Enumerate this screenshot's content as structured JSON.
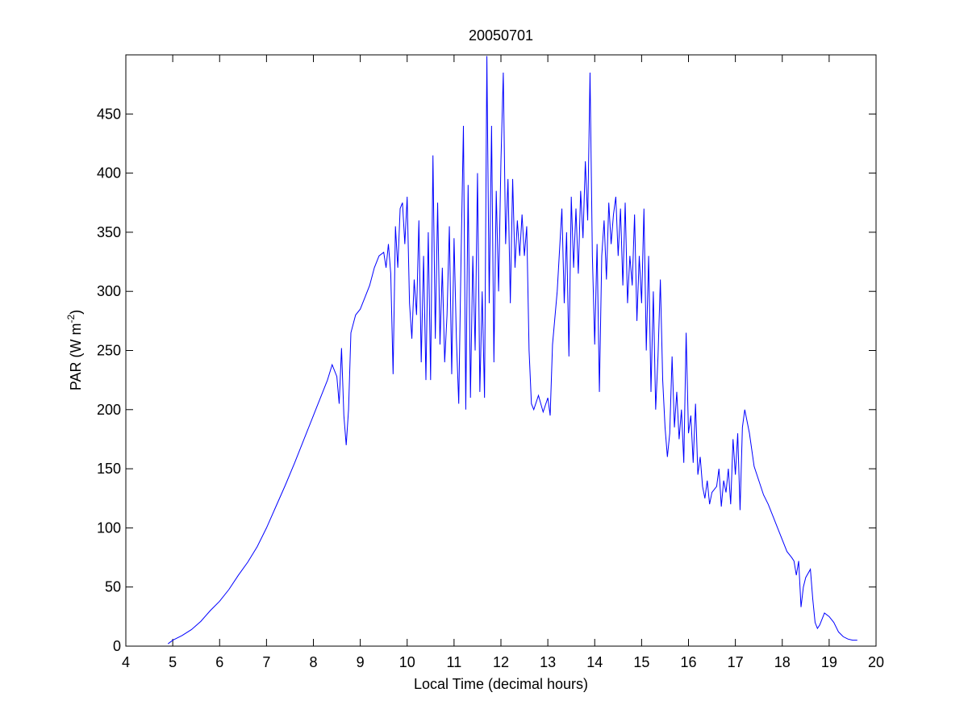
{
  "chart_data": {
    "type": "line",
    "title": "20050701",
    "xlabel": "Local Time (decimal hours)",
    "ylabel": {
      "text": "PAR (W m",
      "superscript": "-2",
      "suffix": ")"
    },
    "color": "#0000ff",
    "xlim": [
      4,
      20
    ],
    "xticks": [
      4,
      5,
      6,
      7,
      8,
      9,
      10,
      11,
      12,
      13,
      14,
      15,
      16,
      17,
      18,
      19,
      20
    ],
    "ylim": [
      0,
      500
    ],
    "yticks": [
      0,
      50,
      100,
      150,
      200,
      250,
      300,
      350,
      400,
      450
    ],
    "x": [
      4.9,
      5.0,
      5.2,
      5.4,
      5.6,
      5.8,
      6.0,
      6.2,
      6.4,
      6.6,
      6.8,
      7.0,
      7.2,
      7.4,
      7.6,
      7.8,
      8.0,
      8.2,
      8.3,
      8.4,
      8.5,
      8.55,
      8.6,
      8.65,
      8.7,
      8.75,
      8.8,
      8.9,
      9.0,
      9.1,
      9.2,
      9.3,
      9.4,
      9.5,
      9.55,
      9.6,
      9.65,
      9.7,
      9.75,
      9.8,
      9.85,
      9.9,
      9.95,
      10.0,
      10.05,
      10.1,
      10.15,
      10.2,
      10.25,
      10.3,
      10.35,
      10.4,
      10.45,
      10.5,
      10.55,
      10.6,
      10.65,
      10.7,
      10.75,
      10.8,
      10.85,
      10.9,
      10.95,
      11.0,
      11.05,
      11.1,
      11.15,
      11.2,
      11.25,
      11.3,
      11.35,
      11.4,
      11.45,
      11.5,
      11.55,
      11.6,
      11.65,
      11.7,
      11.75,
      11.8,
      11.85,
      11.9,
      11.95,
      12.0,
      12.05,
      12.1,
      12.15,
      12.2,
      12.25,
      12.3,
      12.35,
      12.4,
      12.45,
      12.5,
      12.55,
      12.6,
      12.65,
      12.7,
      12.8,
      12.9,
      13.0,
      13.05,
      13.1,
      13.2,
      13.3,
      13.35,
      13.4,
      13.45,
      13.5,
      13.55,
      13.6,
      13.65,
      13.7,
      13.75,
      13.8,
      13.85,
      13.9,
      13.95,
      14.0,
      14.05,
      14.1,
      14.15,
      14.2,
      14.25,
      14.3,
      14.35,
      14.4,
      14.45,
      14.5,
      14.55,
      14.6,
      14.65,
      14.7,
      14.75,
      14.8,
      14.85,
      14.9,
      14.95,
      15.0,
      15.05,
      15.1,
      15.15,
      15.2,
      15.25,
      15.3,
      15.35,
      15.4,
      15.45,
      15.5,
      15.55,
      15.6,
      15.65,
      15.7,
      15.75,
      15.8,
      15.85,
      15.9,
      15.95,
      16.0,
      16.05,
      16.1,
      16.15,
      16.2,
      16.25,
      16.3,
      16.35,
      16.4,
      16.45,
      16.5,
      16.6,
      16.65,
      16.7,
      16.75,
      16.8,
      16.85,
      16.9,
      16.95,
      17.0,
      17.05,
      17.1,
      17.15,
      17.2,
      17.3,
      17.4,
      17.5,
      17.6,
      17.7,
      17.8,
      17.9,
      18.0,
      18.1,
      18.2,
      18.25,
      18.3,
      18.35,
      18.4,
      18.45,
      18.5,
      18.6,
      18.65,
      18.7,
      18.75,
      18.8,
      18.9,
      19.0,
      19.1,
      19.2,
      19.3,
      19.4,
      19.5,
      19.6
    ],
    "values": [
      2,
      5,
      9,
      14,
      21,
      30,
      38,
      48,
      60,
      71,
      84,
      100,
      118,
      136,
      155,
      175,
      195,
      215,
      225,
      238,
      228,
      205,
      252,
      195,
      170,
      200,
      265,
      280,
      285,
      295,
      305,
      320,
      330,
      333,
      320,
      340,
      315,
      230,
      355,
      320,
      370,
      375,
      340,
      380,
      290,
      260,
      310,
      280,
      360,
      240,
      330,
      225,
      350,
      225,
      415,
      260,
      375,
      255,
      320,
      240,
      280,
      355,
      230,
      345,
      260,
      205,
      330,
      440,
      200,
      390,
      210,
      330,
      250,
      400,
      215,
      300,
      210,
      499,
      290,
      440,
      240,
      385,
      300,
      410,
      485,
      340,
      395,
      290,
      395,
      320,
      360,
      330,
      365,
      330,
      355,
      250,
      205,
      200,
      212,
      198,
      210,
      195,
      255,
      300,
      370,
      290,
      350,
      245,
      380,
      320,
      370,
      315,
      385,
      345,
      410,
      360,
      485,
      330,
      255,
      340,
      215,
      330,
      360,
      310,
      375,
      340,
      365,
      380,
      330,
      370,
      305,
      375,
      290,
      330,
      305,
      365,
      275,
      330,
      290,
      370,
      250,
      330,
      215,
      300,
      200,
      245,
      310,
      225,
      185,
      160,
      180,
      245,
      185,
      215,
      175,
      200,
      155,
      265,
      180,
      195,
      155,
      205,
      145,
      160,
      135,
      125,
      140,
      120,
      130,
      135,
      150,
      118,
      140,
      130,
      150,
      120,
      175,
      145,
      180,
      115,
      185,
      200,
      180,
      152,
      140,
      128,
      120,
      110,
      100,
      90,
      80,
      75,
      72,
      60,
      72,
      33,
      50,
      58,
      65,
      40,
      20,
      15,
      18,
      28,
      25,
      20,
      12,
      8,
      6,
      5,
      5
    ]
  }
}
